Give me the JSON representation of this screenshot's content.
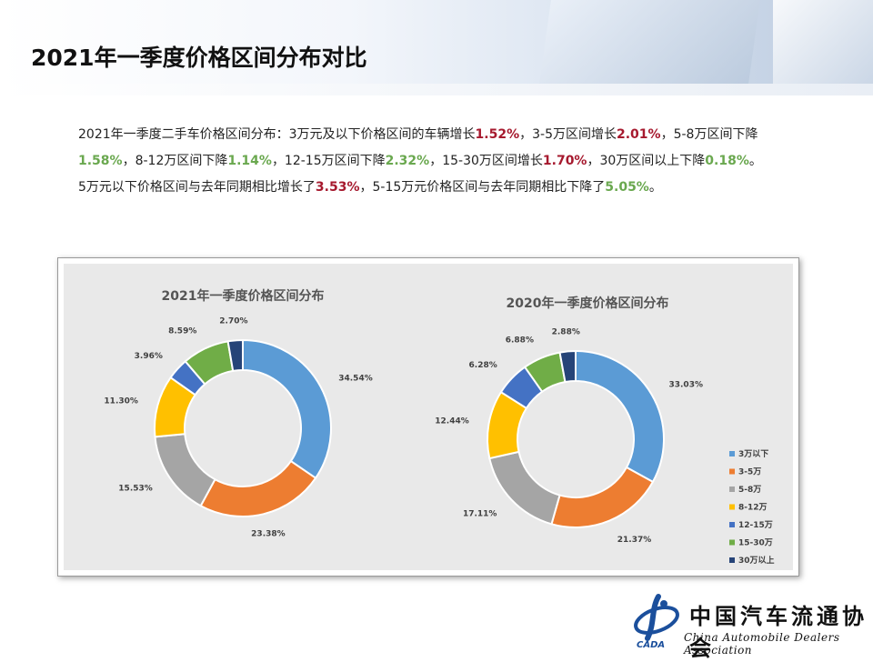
{
  "page_title": "2021年一季度价格区间分布对比",
  "paragraph1": {
    "s1": "2021年一季度二手车价格区间分布：3万元及以下价格区间的车辆增长",
    "v1": "1.52%",
    "s2": "，3-5万区间增长",
    "v2": "2.01%",
    "s3": "，5-8万区间下降",
    "v3": "1.58%",
    "s4": "，8-12万区间下降",
    "v4": "1.14%",
    "s5": "，12-15万区间下降",
    "v5": "2.32%",
    "s6": "，15-30万区间增长",
    "v6": "1.70%",
    "s7": "，30万区间以上下降",
    "v7": "0.18%",
    "s8": "。"
  },
  "paragraph2": {
    "s1": "5万元以下价格区间与去年同期相比增长了",
    "v1": "3.53%",
    "s2": "，5-15万元价格区间与去年同期相比下降了",
    "v2": "5.05%",
    "s3": "。"
  },
  "colors": {
    "red": "#a6192e",
    "green": "#6aa84f"
  },
  "chart_data": [
    {
      "type": "pie",
      "style": "donut",
      "title": "2021年一季度价格区间分布",
      "categories": [
        "3万以下",
        "3-5万",
        "5-8万",
        "8-12万",
        "12-15万",
        "15-30万",
        "30万以上"
      ],
      "values": [
        34.54,
        23.38,
        15.53,
        11.3,
        3.96,
        8.59,
        2.7
      ],
      "labels": [
        "34.54%",
        "23.38%",
        "15.53%",
        "11.30%",
        "3.96%",
        "8.59%",
        "2.70%"
      ],
      "colors": [
        "#5b9bd5",
        "#ed7d31",
        "#a5a5a5",
        "#ffc000",
        "#4472c4",
        "#70ad47",
        "#264478"
      ]
    },
    {
      "type": "pie",
      "style": "donut",
      "title": "2020年一季度价格区间分布",
      "categories": [
        "3万以下",
        "3-5万",
        "5-8万",
        "8-12万",
        "12-15万",
        "15-30万",
        "30万以上"
      ],
      "values": [
        33.03,
        21.37,
        17.11,
        12.44,
        6.28,
        6.88,
        2.88
      ],
      "labels": [
        "33.03%",
        "21.37%",
        "17.11%",
        "12.44%",
        "6.28%",
        "6.88%",
        "2.88%"
      ],
      "colors": [
        "#5b9bd5",
        "#ed7d31",
        "#a5a5a5",
        "#ffc000",
        "#4472c4",
        "#70ad47",
        "#264478"
      ],
      "legend_position": "right"
    }
  ],
  "legend": {
    "items": [
      "3万以下",
      "3-5万",
      "5-8万",
      "8-12万",
      "12-15万",
      "15-30万",
      "30万以上"
    ]
  },
  "logo": {
    "cn": "中国汽车流通协会",
    "en": "China Automobile Dealers Association",
    "mark": "CADA",
    "mark_color": "#1b4f9c"
  }
}
